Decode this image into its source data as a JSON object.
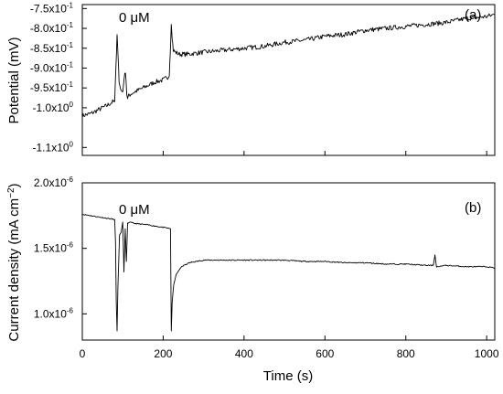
{
  "chart_data": [
    {
      "type": "line",
      "panel_label": "(a)",
      "annotation": "0 μM",
      "ylabel": "Potential (mV)",
      "xlim": [
        0,
        1020
      ],
      "ylim": [
        -1.12,
        -0.74
      ],
      "yticks": [
        -0.75,
        -0.8,
        -0.85,
        -0.9,
        -0.95,
        -1.0,
        -1.1
      ],
      "ytick_labels": [
        "-7.5x10",
        "-8.0x10",
        "-8.5x10",
        "-9.0x10",
        "-9.5x10",
        "-1.0x10",
        "-1.1x10"
      ],
      "ytick_exponents": [
        "-1",
        "-1",
        "-1",
        "-1",
        "-1",
        "0",
        "0"
      ],
      "series": [
        {
          "x": [
            0,
            20,
            40,
            60,
            75,
            80,
            83,
            86,
            88,
            91,
            95,
            100,
            105,
            108,
            110,
            112,
            115,
            120,
            140,
            160,
            180,
            200,
            215,
            218,
            220,
            222,
            225,
            230,
            240,
            260,
            300,
            350,
            400,
            450,
            500,
            550,
            600,
            650,
            700,
            750,
            800,
            850,
            900,
            950,
            1000,
            1020
          ],
          "y": [
            -1.02,
            -1.015,
            -1.005,
            -0.995,
            -0.985,
            -0.985,
            -0.9,
            -0.82,
            -0.86,
            -0.93,
            -0.955,
            -0.96,
            -0.91,
            -0.925,
            -0.965,
            -0.975,
            -0.97,
            -0.965,
            -0.955,
            -0.945,
            -0.935,
            -0.93,
            -0.92,
            -0.85,
            -0.785,
            -0.82,
            -0.855,
            -0.86,
            -0.865,
            -0.865,
            -0.86,
            -0.855,
            -0.85,
            -0.845,
            -0.835,
            -0.83,
            -0.82,
            -0.815,
            -0.805,
            -0.8,
            -0.795,
            -0.79,
            -0.785,
            -0.775,
            -0.77,
            -0.765
          ]
        }
      ]
    },
    {
      "type": "line",
      "panel_label": "(b)",
      "annotation": "0 μM",
      "ylabel": "Current density (mA cm",
      "ylabel_sup": "−2",
      "ylabel_end": ")",
      "xlabel": "Time (s)",
      "xlim": [
        0,
        1020
      ],
      "xticks": [
        0,
        200,
        400,
        600,
        800,
        1000
      ],
      "xtick_labels": [
        "0",
        "200",
        "400",
        "600",
        "800",
        "1000"
      ],
      "ylim": [
        8e-07,
        2e-06
      ],
      "yticks": [
        2e-06,
        1.5e-06,
        1e-06
      ],
      "ytick_labels": [
        "2.0x10",
        "1.5x10",
        "1.0x10"
      ],
      "ytick_exponents": [
        "-6",
        "-6",
        "-6"
      ],
      "series": [
        {
          "x": [
            0,
            40,
            80,
            82,
            84,
            86,
            88,
            92,
            96,
            100,
            103,
            106,
            109,
            112,
            116,
            130,
            160,
            200,
            218,
            220,
            222,
            226,
            232,
            245,
            265,
            300,
            350,
            400,
            450,
            500,
            550,
            600,
            650,
            700,
            750,
            800,
            850,
            868,
            872,
            876,
            900,
            950,
            1000,
            1020
          ],
          "y": [
            1.76e-06,
            1.74e-06,
            1.72e-06,
            1.55e-06,
            1.1e-06,
            8.7e-07,
            1.2e-06,
            1.6e-06,
            1.62e-06,
            1.7e-06,
            1.32e-06,
            1.65e-06,
            1.4e-06,
            1.69e-06,
            1.7e-06,
            1.69e-06,
            1.68e-06,
            1.66e-06,
            1.65e-06,
            8.7e-07,
            1.08e-06,
            1.22e-06,
            1.3e-06,
            1.36e-06,
            1.39e-06,
            1.41e-06,
            1.41e-06,
            1.41e-06,
            1.41e-06,
            1.41e-06,
            1.4e-06,
            1.4e-06,
            1.39e-06,
            1.39e-06,
            1.38e-06,
            1.38e-06,
            1.37e-06,
            1.37e-06,
            1.45e-06,
            1.36e-06,
            1.37e-06,
            1.36e-06,
            1.36e-06,
            1.35e-06
          ]
        }
      ]
    }
  ]
}
